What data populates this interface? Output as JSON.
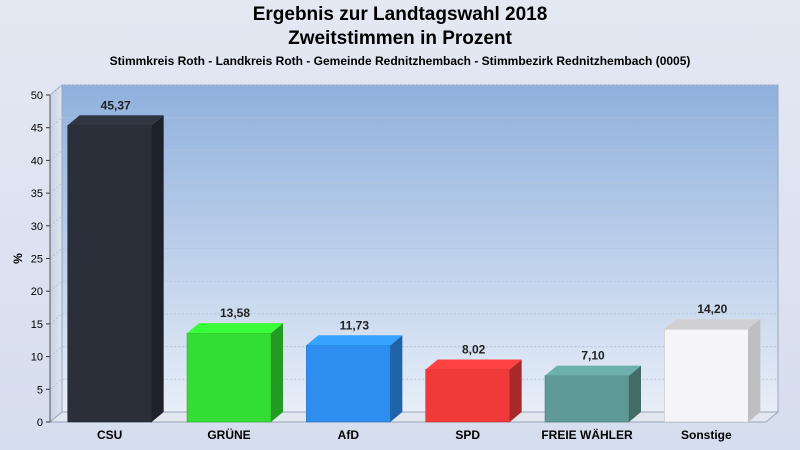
{
  "chart_data": {
    "type": "bar",
    "title": "Ergebnis zur Landtagswahl 2018",
    "subtitle": "Zweitstimmen in Prozent",
    "caption": "Stimmkreis Roth - Landkreis Roth - Gemeinde Rednitzhembach - Stimmbezirk Rednitzhembach (0005)",
    "ylabel": "%",
    "xlabel": "",
    "ylim": [
      0,
      50
    ],
    "yticks": [
      0,
      5,
      10,
      15,
      20,
      25,
      30,
      35,
      40,
      45,
      50
    ],
    "categories": [
      "CSU",
      "GRÜNE",
      "AfD",
      "SPD",
      "FREIE WÄHLER",
      "Sonstige"
    ],
    "values": [
      45.37,
      13.58,
      11.73,
      8.02,
      7.1,
      14.2
    ],
    "value_labels": [
      "45,37",
      "13,58",
      "11,73",
      "8,02",
      "7,10",
      "14,20"
    ],
    "colors": [
      "#2b2f3a",
      "#33dd33",
      "#2e8ef0",
      "#f03a3a",
      "#5f9a96",
      "#f5f5f8"
    ],
    "grid": true,
    "legend": "none"
  }
}
